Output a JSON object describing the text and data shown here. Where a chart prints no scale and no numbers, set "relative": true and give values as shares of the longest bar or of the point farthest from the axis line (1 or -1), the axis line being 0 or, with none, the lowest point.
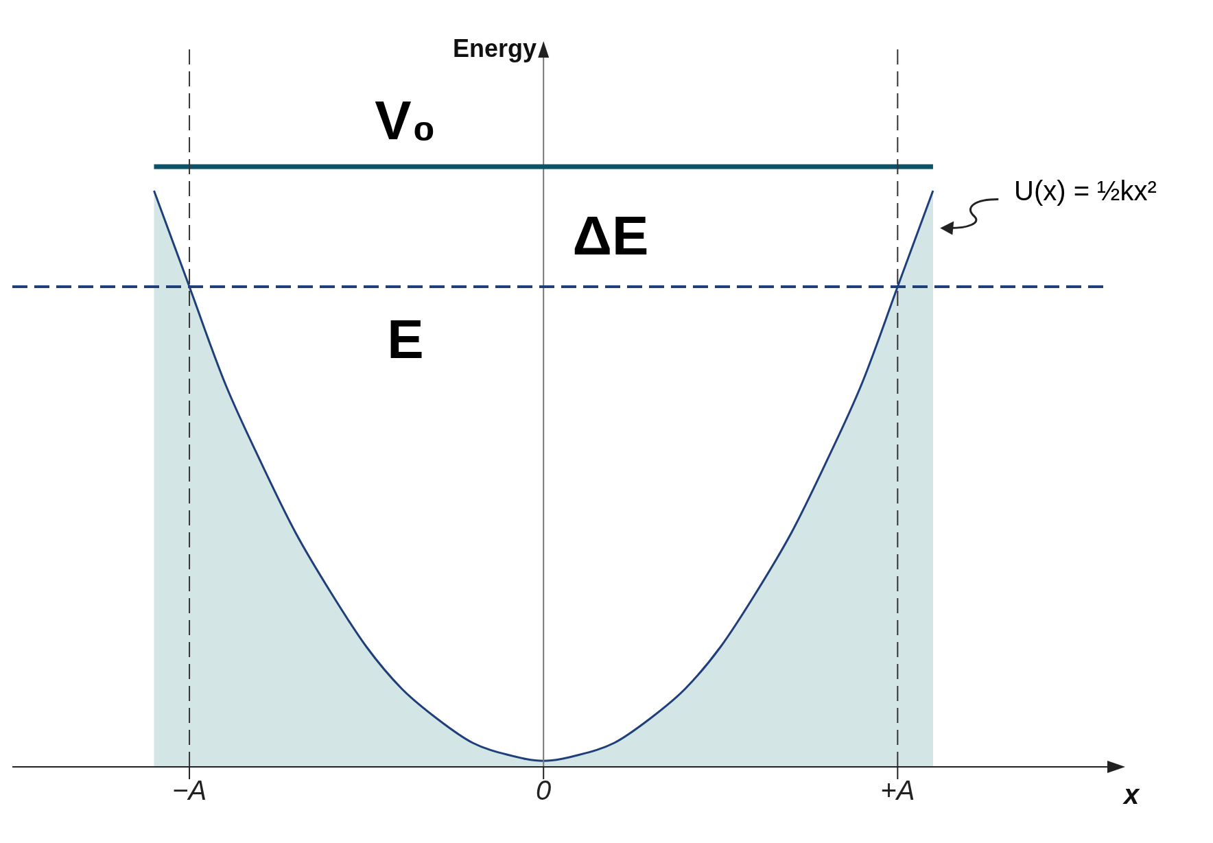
{
  "chart_data": {
    "type": "area",
    "relative": true,
    "xlabel": "x",
    "ylabel": "Energy",
    "categories": [
      null,
      null,
      null,
      null,
      null,
      "−A",
      null,
      null,
      null,
      null,
      null,
      null,
      null,
      null,
      null,
      "0",
      null,
      null,
      null,
      null,
      null,
      null,
      null,
      null,
      null,
      "+A",
      null,
      null,
      null,
      null,
      null,
      null
    ],
    "series": [
      {
        "color": "#1f3f7a",
        "values": [
          null,
          null,
          null,
          null,
          0.96,
          0.8,
          0.64,
          0.51,
          0.39,
          0.29,
          0.2,
          0.13,
          0.08,
          0.04,
          0.02,
          0.01,
          0.02,
          0.04,
          0.08,
          0.13,
          0.2,
          0.29,
          0.39,
          0.51,
          0.64,
          0.8,
          0.96,
          null,
          null,
          null,
          null,
          null
        ]
      },
      {
        "type": "line",
        "color": "#0b5268",
        "line_style": "solid",
        "values": [
          null,
          null,
          null,
          null,
          1,
          null,
          null,
          null,
          null,
          null,
          null,
          null,
          null,
          null,
          null,
          null,
          null,
          null,
          null,
          null,
          null,
          null,
          null,
          null,
          null,
          null,
          1,
          null,
          null,
          null,
          null,
          null
        ]
      }
    ],
    "ref_lines": [
      {
        "axis": "y",
        "value": 0.8,
        "color": "#1f3f7a",
        "line_style": "dashed"
      },
      {
        "axis": "x",
        "value": "−A",
        "color": "#333333",
        "line_style": "dashed"
      },
      {
        "axis": "x",
        "value": "+A",
        "color": "#333333",
        "line_style": "dashed"
      }
    ],
    "annotations": [
      "V₀",
      "ΔE",
      "E",
      "U(x) = ½kx²"
    ]
  }
}
